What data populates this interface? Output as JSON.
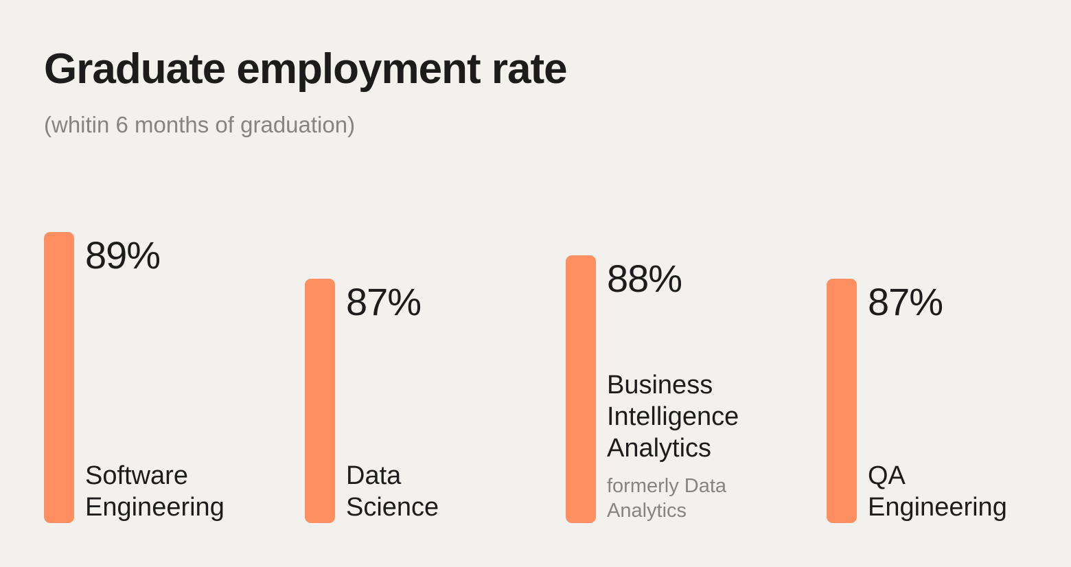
{
  "title": "Graduate employment rate",
  "subtitle": "(whitin 6 months of graduation)",
  "colors": {
    "background": "#f2f1ed",
    "bar": "#ff8e61",
    "text": "#1c1c1c",
    "muted": "#868482"
  },
  "chart_data": {
    "type": "bar",
    "title": "Graduate employment rate",
    "subtitle": "(whitin 6 months of graduation)",
    "categories": [
      "Software Engineering",
      "Data Science",
      "Business Intelligence Analytics",
      "QA Engineering"
    ],
    "values": [
      89,
      87,
      88,
      87
    ],
    "value_labels": [
      "89%",
      "87%",
      "88%",
      "87%"
    ],
    "label_lines": [
      [
        "Software",
        "Engineering"
      ],
      [
        "Data",
        "Science"
      ],
      [
        "Business",
        "Intelligence",
        "Analytics"
      ],
      [
        "QA",
        "Engineering"
      ]
    ],
    "notes": [
      "",
      "",
      "formerly Data Analytics",
      ""
    ],
    "xlabel": "",
    "ylabel": "",
    "grid": false,
    "legend": "none"
  }
}
